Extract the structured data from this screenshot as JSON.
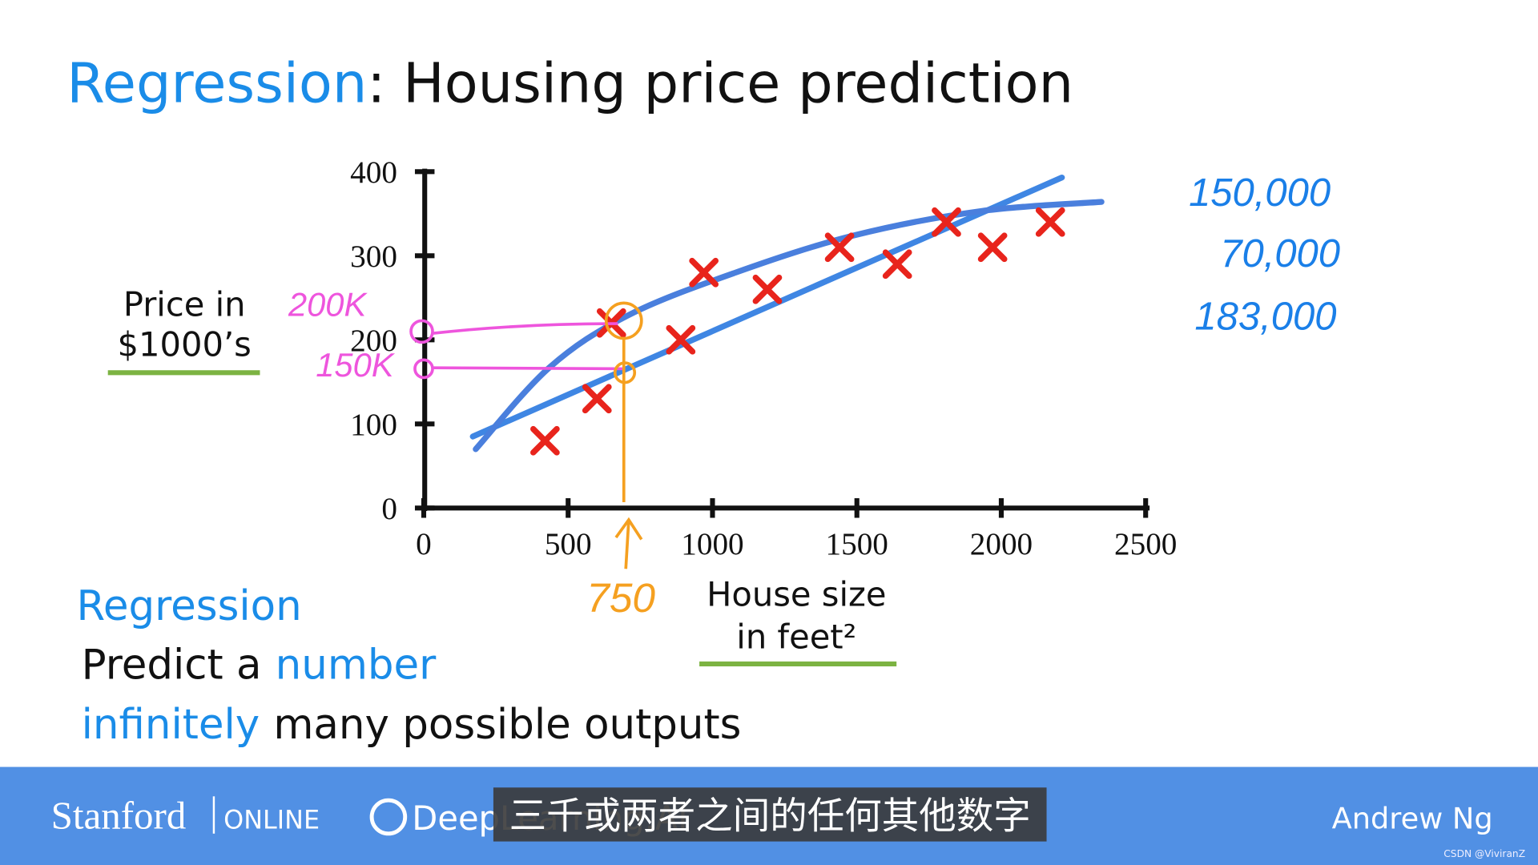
{
  "slide": {
    "title_highlight": "Regression",
    "title_rest": ": Housing price prediction",
    "section": "Regression",
    "line1_a": "Predict a",
    "line1_b": "number",
    "line2_a": "infinitely",
    "line2_b": "many possible outputs"
  },
  "chart_data": {
    "type": "scatter",
    "ylabel": [
      "Price in",
      "$1000’s"
    ],
    "xlabel": [
      "House size",
      "in feet²"
    ],
    "x": [
      420,
      600,
      650,
      890,
      970,
      1190,
      1440,
      1640,
      1810,
      1970,
      2170
    ],
    "values": [
      80,
      130,
      220,
      200,
      280,
      260,
      310,
      290,
      340,
      310,
      340
    ],
    "color": "#e8241c",
    "xlim": [
      0,
      2500
    ],
    "ylim": [
      0,
      400
    ],
    "xticks": [
      0,
      500,
      1000,
      1500,
      2000,
      2500
    ],
    "yticks": [
      0,
      100,
      200,
      300,
      400
    ],
    "fit_lines": [
      {
        "color": "#3f86e3",
        "x": [
          170,
          2210
        ],
        "y": [
          85,
          393
        ]
      },
      {
        "color": "#4a7fdd",
        "x": [
          180,
          435,
          707,
          1080,
          1488,
          1929,
          2347
        ],
        "y": [
          70,
          167,
          229,
          280,
          324,
          353,
          364
        ]
      }
    ],
    "annotations": {
      "y_marks": [
        "200K",
        "150K"
      ],
      "x_mark": "750",
      "prices": [
        "150,000",
        "70,000",
        "183,000"
      ]
    }
  },
  "footer": {
    "brand": "Stanford",
    "brand_sub": "ONLINE",
    "partner": "DeepLearning.AI",
    "subtitle": "三千或两者之间的任何其他数字",
    "speaker": "Andrew Ng",
    "watermark": "CSDN @ViviranZ"
  }
}
